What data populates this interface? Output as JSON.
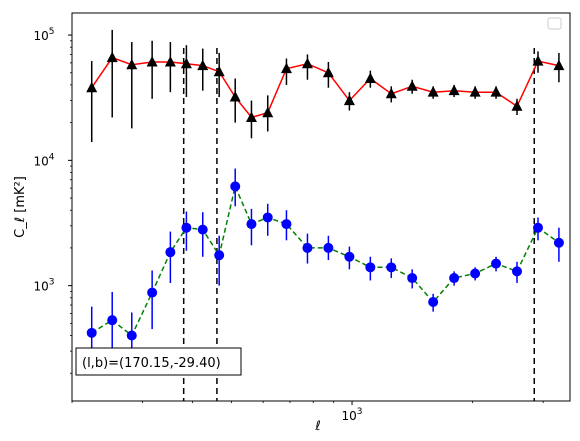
{
  "chart_data": {
    "type": "scatter",
    "x_scale": "log",
    "y_scale": "log",
    "xlim": [
      200,
      3500
    ],
    "ylim": [
      120,
      150000
    ],
    "xlabel": "ℓ",
    "ylabel": "C_ℓ  [mK²]",
    "legend": {
      "placement": "top-right",
      "entries": []
    },
    "x_ticks": [
      {
        "value": 1000,
        "label_base": "10",
        "label_exp": "3"
      }
    ],
    "y_ticks": [
      {
        "value": 1000,
        "label_base": "10",
        "label_exp": "3"
      },
      {
        "value": 10000,
        "label_base": "10",
        "label_exp": "4"
      },
      {
        "value": 100000,
        "label_base": "10",
        "label_exp": "5"
      }
    ],
    "vlines": [
      380,
      460,
      2850
    ],
    "annotation": "(l,b)=(170.15,-29.40)",
    "series": [
      {
        "marker": "triangle",
        "marker_color": "#000000",
        "line_color": "#ff0000",
        "line_style": "solid",
        "points": [
          {
            "x": 224,
            "y": 38000,
            "lo": 14000,
            "hi": 62000
          },
          {
            "x": 252,
            "y": 66000,
            "lo": 22000,
            "hi": 110000
          },
          {
            "x": 282,
            "y": 58000,
            "lo": 18000,
            "hi": 88000
          },
          {
            "x": 317,
            "y": 61000,
            "lo": 31000,
            "hi": 90000
          },
          {
            "x": 352,
            "y": 61000,
            "lo": 35000,
            "hi": 88000
          },
          {
            "x": 386,
            "y": 59000,
            "lo": 32000,
            "hi": 83000
          },
          {
            "x": 424,
            "y": 57000,
            "lo": 36000,
            "hi": 78000
          },
          {
            "x": 466,
            "y": 51000,
            "lo": 32000,
            "hi": 72000
          },
          {
            "x": 511,
            "y": 32000,
            "lo": 20000,
            "hi": 45000
          },
          {
            "x": 561,
            "y": 22000,
            "lo": 15000,
            "hi": 30000
          },
          {
            "x": 616,
            "y": 24000,
            "lo": 17000,
            "hi": 33000
          },
          {
            "x": 686,
            "y": 54000,
            "lo": 40000,
            "hi": 65000
          },
          {
            "x": 774,
            "y": 59000,
            "lo": 44000,
            "hi": 70000
          },
          {
            "x": 873,
            "y": 50000,
            "lo": 38000,
            "hi": 61000
          },
          {
            "x": 985,
            "y": 30000,
            "lo": 25000,
            "hi": 35000
          },
          {
            "x": 1111,
            "y": 45000,
            "lo": 38000,
            "hi": 52000
          },
          {
            "x": 1253,
            "y": 34000,
            "lo": 29000,
            "hi": 39000
          },
          {
            "x": 1413,
            "y": 39000,
            "lo": 34000,
            "hi": 44000
          },
          {
            "x": 1594,
            "y": 35000,
            "lo": 31000,
            "hi": 39000
          },
          {
            "x": 1798,
            "y": 36000,
            "lo": 32000,
            "hi": 40000
          },
          {
            "x": 2029,
            "y": 35000,
            "lo": 31000,
            "hi": 39000
          },
          {
            "x": 2288,
            "y": 35000,
            "lo": 31000,
            "hi": 39000
          },
          {
            "x": 2581,
            "y": 27000,
            "lo": 23000,
            "hi": 31000
          },
          {
            "x": 2912,
            "y": 62000,
            "lo": 50000,
            "hi": 74000
          },
          {
            "x": 3284,
            "y": 57000,
            "lo": 42000,
            "hi": 72000
          }
        ]
      },
      {
        "marker": "circle",
        "marker_color": "#0000ff",
        "line_color": "#008000",
        "line_style": "dashed",
        "points": [
          {
            "x": 224,
            "y": 420,
            "lo": 220,
            "hi": 680
          },
          {
            "x": 252,
            "y": 530,
            "lo": 280,
            "hi": 890
          },
          {
            "x": 282,
            "y": 400,
            "lo": 220,
            "hi": 610
          },
          {
            "x": 317,
            "y": 880,
            "lo": 450,
            "hi": 1320
          },
          {
            "x": 352,
            "y": 1850,
            "lo": 1050,
            "hi": 2700
          },
          {
            "x": 386,
            "y": 2900,
            "lo": 1900,
            "hi": 3900
          },
          {
            "x": 424,
            "y": 2800,
            "lo": 1700,
            "hi": 3850
          },
          {
            "x": 466,
            "y": 1750,
            "lo": 1000,
            "hi": 2500
          },
          {
            "x": 511,
            "y": 6200,
            "lo": 4300,
            "hi": 8600
          },
          {
            "x": 561,
            "y": 3100,
            "lo": 2100,
            "hi": 4100
          },
          {
            "x": 616,
            "y": 3500,
            "lo": 2500,
            "hi": 4500
          },
          {
            "x": 686,
            "y": 3100,
            "lo": 2300,
            "hi": 4000
          },
          {
            "x": 774,
            "y": 2000,
            "lo": 1500,
            "hi": 2600
          },
          {
            "x": 873,
            "y": 2000,
            "lo": 1600,
            "hi": 2500
          },
          {
            "x": 985,
            "y": 1700,
            "lo": 1350,
            "hi": 2050
          },
          {
            "x": 1111,
            "y": 1400,
            "lo": 1100,
            "hi": 1700
          },
          {
            "x": 1253,
            "y": 1400,
            "lo": 1150,
            "hi": 1650
          },
          {
            "x": 1413,
            "y": 1150,
            "lo": 950,
            "hi": 1350
          },
          {
            "x": 1594,
            "y": 740,
            "lo": 620,
            "hi": 860
          },
          {
            "x": 1798,
            "y": 1150,
            "lo": 1000,
            "hi": 1300
          },
          {
            "x": 2029,
            "y": 1250,
            "lo": 1100,
            "hi": 1400
          },
          {
            "x": 2288,
            "y": 1500,
            "lo": 1300,
            "hi": 1700
          },
          {
            "x": 2581,
            "y": 1300,
            "lo": 1050,
            "hi": 1550
          },
          {
            "x": 2912,
            "y": 2900,
            "lo": 2300,
            "hi": 3500
          },
          {
            "x": 3284,
            "y": 2200,
            "lo": 1550,
            "hi": 2900
          }
        ]
      }
    ]
  }
}
